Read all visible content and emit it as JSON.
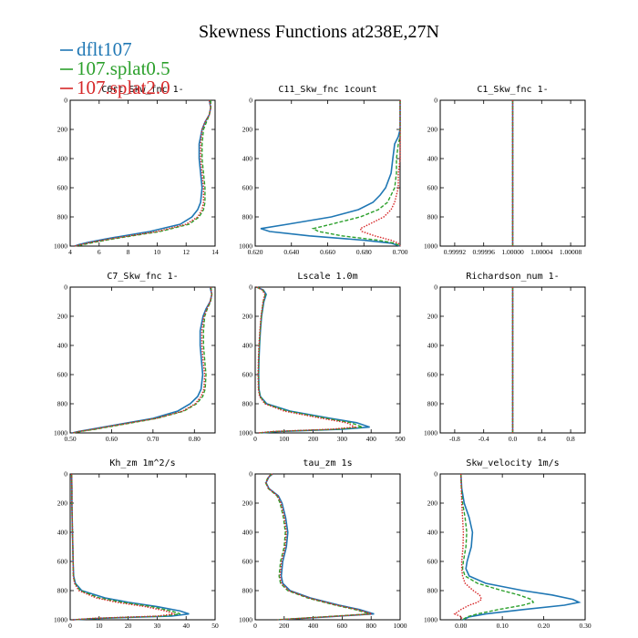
{
  "figure_title": "Skewness Functions at238E,27N",
  "colors": {
    "dflt107": "#1f77b4",
    "splat05": "#2ca02c",
    "splat20": "#d62728"
  },
  "legend": [
    {
      "label": "dflt107",
      "color": "#1f77b4"
    },
    {
      "label": "107.splat0.5",
      "color": "#2ca02c"
    },
    {
      "label": "107.splat2.0",
      "color": "#d62728"
    }
  ],
  "chart_data": [
    {
      "type": "line",
      "title": "C6rt_Skw_fnc   1-",
      "xlim": [
        4,
        14
      ],
      "ylim": [
        0,
        1000
      ],
      "y_inverted": true,
      "xticks": [
        4,
        6,
        8,
        10,
        12,
        14
      ],
      "xtick_labels": [
        "4",
        "6",
        "8",
        "10",
        "12",
        "14"
      ],
      "yticks": [
        0,
        200,
        400,
        600,
        800,
        1000
      ],
      "ytick_labels": [
        "0",
        "200",
        "400",
        "600",
        "800",
        "1000"
      ],
      "y": [
        0,
        50,
        100,
        150,
        200,
        300,
        400,
        500,
        600,
        700,
        750,
        800,
        850,
        900,
        950,
        975,
        990,
        1000
      ],
      "series": [
        {
          "name": "dflt107",
          "values": [
            13.6,
            13.7,
            13.6,
            13.3,
            13.1,
            12.9,
            12.9,
            13.0,
            13.1,
            13.0,
            12.8,
            12.4,
            11.6,
            9.5,
            6.5,
            5.2,
            4.6,
            4.3
          ]
        },
        {
          "name": "107.splat0.5",
          "values": [
            13.7,
            13.7,
            13.6,
            13.4,
            13.2,
            13.1,
            13.1,
            13.2,
            13.3,
            13.3,
            13.2,
            12.9,
            12.2,
            10.2,
            7.0,
            5.6,
            4.9,
            4.4
          ]
        },
        {
          "name": "107.splat2.0",
          "values": [
            13.6,
            13.7,
            13.6,
            13.3,
            13.1,
            13.0,
            13.0,
            13.1,
            13.2,
            13.2,
            13.1,
            12.8,
            12.0,
            10.0,
            6.8,
            5.4,
            4.7,
            4.3
          ]
        }
      ]
    },
    {
      "type": "line",
      "title": "C11_Skw_fnc   1count",
      "xlim": [
        0.62,
        0.7
      ],
      "ylim": [
        0,
        1000
      ],
      "y_inverted": true,
      "xticks": [
        0.62,
        0.64,
        0.66,
        0.68,
        0.7
      ],
      "xtick_labels": [
        "0.620",
        "0.640",
        "0.660",
        "0.680",
        "0.700"
      ],
      "yticks": [
        0,
        200,
        400,
        600,
        800,
        1000
      ],
      "ytick_labels": [
        "0",
        "200",
        "400",
        "600",
        "800",
        "1000"
      ],
      "y": [
        0,
        100,
        200,
        250,
        300,
        400,
        500,
        600,
        650,
        700,
        750,
        800,
        850,
        880,
        900,
        930,
        960,
        980,
        1000
      ],
      "series": [
        {
          "name": "dflt107",
          "values": [
            0.7,
            0.7,
            0.7,
            0.699,
            0.697,
            0.696,
            0.695,
            0.692,
            0.689,
            0.685,
            0.677,
            0.662,
            0.638,
            0.623,
            0.628,
            0.65,
            0.68,
            0.695,
            0.7
          ]
        },
        {
          "name": "107.splat0.5",
          "values": [
            0.7,
            0.7,
            0.7,
            0.7,
            0.699,
            0.698,
            0.698,
            0.697,
            0.695,
            0.693,
            0.688,
            0.678,
            0.662,
            0.652,
            0.655,
            0.668,
            0.688,
            0.697,
            0.7
          ]
        },
        {
          "name": "107.splat2.0",
          "values": [
            0.7,
            0.7,
            0.7,
            0.7,
            0.7,
            0.7,
            0.699,
            0.699,
            0.698,
            0.697,
            0.695,
            0.691,
            0.683,
            0.678,
            0.679,
            0.686,
            0.695,
            0.699,
            0.7
          ]
        }
      ]
    },
    {
      "type": "line",
      "title": "C1_Skw_fnc   1-",
      "xlim": [
        0.9999,
        1.0001
      ],
      "ylim": [
        0,
        1000
      ],
      "y_inverted": true,
      "xticks": [
        0.99992,
        0.99996,
        1.0,
        1.00004,
        1.00008
      ],
      "xtick_labels": [
        "0.99992",
        "0.99996",
        "1.00000",
        "1.00004",
        "1.00008"
      ],
      "yticks": [
        0,
        200,
        400,
        600,
        800,
        1000
      ],
      "ytick_labels": [
        "0",
        "200",
        "400",
        "600",
        "800",
        "1000"
      ],
      "y": [
        0,
        1000
      ],
      "series": [
        {
          "name": "dflt107",
          "values": [
            1.0,
            1.0
          ]
        },
        {
          "name": "107.splat0.5",
          "values": [
            1.0,
            1.0
          ]
        },
        {
          "name": "107.splat2.0",
          "values": [
            1.0,
            1.0
          ]
        }
      ]
    },
    {
      "type": "line",
      "title": "C7_Skw_fnc   1-",
      "xlim": [
        0.5,
        0.85
      ],
      "ylim": [
        0,
        1000
      ],
      "y_inverted": true,
      "xticks": [
        0.5,
        0.6,
        0.7,
        0.8
      ],
      "xtick_labels": [
        "0.50",
        "0.60",
        "0.70",
        "0.80"
      ],
      "yticks": [
        0,
        200,
        400,
        600,
        800,
        1000
      ],
      "ytick_labels": [
        "0",
        "200",
        "400",
        "600",
        "800",
        "1000"
      ],
      "y": [
        0,
        50,
        100,
        150,
        200,
        300,
        400,
        500,
        600,
        700,
        750,
        800,
        850,
        900,
        950,
        975,
        990,
        1000
      ],
      "series": [
        {
          "name": "dflt107",
          "values": [
            0.838,
            0.842,
            0.838,
            0.828,
            0.821,
            0.814,
            0.814,
            0.817,
            0.82,
            0.816,
            0.808,
            0.79,
            0.76,
            0.7,
            0.6,
            0.55,
            0.52,
            0.505
          ]
        },
        {
          "name": "107.splat0.5",
          "values": [
            0.84,
            0.842,
            0.839,
            0.831,
            0.825,
            0.822,
            0.822,
            0.825,
            0.828,
            0.826,
            0.82,
            0.805,
            0.775,
            0.71,
            0.61,
            0.56,
            0.525,
            0.507
          ]
        },
        {
          "name": "107.splat2.0",
          "values": [
            0.839,
            0.842,
            0.838,
            0.83,
            0.823,
            0.818,
            0.818,
            0.821,
            0.825,
            0.823,
            0.816,
            0.802,
            0.772,
            0.708,
            0.605,
            0.555,
            0.522,
            0.506
          ]
        }
      ]
    },
    {
      "type": "line",
      "title": "Lscale   1.0m",
      "xlim": [
        0,
        500
      ],
      "ylim": [
        0,
        1000
      ],
      "y_inverted": true,
      "xticks": [
        0,
        100,
        200,
        300,
        400,
        500
      ],
      "xtick_labels": [
        "0",
        "100",
        "200",
        "300",
        "400",
        "500"
      ],
      "yticks": [
        0,
        200,
        400,
        600,
        800,
        1000
      ],
      "ytick_labels": [
        "0",
        "200",
        "400",
        "600",
        "800",
        "1000"
      ],
      "y": [
        0,
        20,
        50,
        100,
        200,
        300,
        400,
        500,
        600,
        700,
        750,
        800,
        850,
        900,
        930,
        960,
        975,
        990,
        1000
      ],
      "series": [
        {
          "name": "dflt107",
          "values": [
            5,
            28,
            38,
            30,
            22,
            18,
            15,
            13,
            12,
            13,
            18,
            40,
            120,
            260,
            350,
            395,
            300,
            80,
            20
          ]
        },
        {
          "name": "107.splat0.5",
          "values": [
            5,
            26,
            35,
            28,
            21,
            17,
            14,
            12,
            11,
            12,
            17,
            36,
            110,
            245,
            330,
            370,
            280,
            70,
            15
          ]
        },
        {
          "name": "107.splat2.0",
          "values": [
            5,
            25,
            33,
            27,
            20,
            16,
            13,
            11,
            10,
            11,
            15,
            33,
            100,
            230,
            315,
            345,
            260,
            60,
            10
          ]
        }
      ]
    },
    {
      "type": "line",
      "title": "Richardson_num   1-",
      "xlim": [
        -1.0,
        1.0
      ],
      "ylim": [
        0,
        1000
      ],
      "y_inverted": true,
      "xticks": [
        -0.8,
        -0.4,
        0.0,
        0.4,
        0.8
      ],
      "xtick_labels": [
        "-0.8",
        "-0.4",
        "0.0",
        "0.4",
        "0.8"
      ],
      "yticks": [
        0,
        200,
        400,
        600,
        800,
        1000
      ],
      "ytick_labels": [
        "0",
        "200",
        "400",
        "600",
        "800",
        "1000"
      ],
      "y": [
        0,
        1000
      ],
      "series": [
        {
          "name": "dflt107",
          "values": [
            0.0,
            0.0
          ]
        },
        {
          "name": "107.splat0.5",
          "values": [
            0.0,
            0.0
          ]
        },
        {
          "name": "107.splat2.0",
          "values": [
            0.0,
            0.0
          ]
        }
      ]
    },
    {
      "type": "line",
      "title": "Kh_zm   1m^2/s",
      "xlim": [
        0,
        50
      ],
      "ylim": [
        0,
        1000
      ],
      "y_inverted": true,
      "xticks": [
        0,
        10,
        20,
        30,
        40,
        50
      ],
      "xtick_labels": [
        "0",
        "10",
        "20",
        "30",
        "40",
        "50"
      ],
      "yticks": [
        0,
        200,
        400,
        600,
        800,
        1000
      ],
      "ytick_labels": [
        "0",
        "200",
        "400",
        "600",
        "800",
        "1000"
      ],
      "y": [
        0,
        100,
        200,
        300,
        400,
        500,
        600,
        700,
        750,
        800,
        850,
        880,
        910,
        940,
        960,
        975,
        990,
        1000
      ],
      "series": [
        {
          "name": "dflt107",
          "values": [
            0.5,
            0.6,
            0.6,
            0.7,
            0.8,
            0.9,
            1.0,
            1.2,
            1.8,
            4,
            12,
            20,
            30,
            38,
            41,
            35,
            10,
            1
          ]
        },
        {
          "name": "107.splat0.5",
          "values": [
            0.5,
            0.6,
            0.6,
            0.7,
            0.8,
            0.9,
            1.0,
            1.1,
            1.6,
            3.5,
            10,
            18,
            28,
            35,
            38,
            32,
            9,
            1
          ]
        },
        {
          "name": "107.splat2.0",
          "values": [
            0.5,
            0.6,
            0.6,
            0.7,
            0.8,
            0.9,
            1.0,
            1.1,
            1.5,
            3,
            9,
            16,
            26,
            33,
            36,
            30,
            8,
            1
          ]
        }
      ]
    },
    {
      "type": "line",
      "title": "tau_zm   1s",
      "xlim": [
        0,
        1000
      ],
      "ylim": [
        0,
        1000
      ],
      "y_inverted": true,
      "xticks": [
        0,
        200,
        400,
        600,
        800,
        1000
      ],
      "xtick_labels": [
        "0",
        "200",
        "400",
        "600",
        "800",
        "1000"
      ],
      "yticks": [
        0,
        200,
        400,
        600,
        800,
        1000
      ],
      "ytick_labels": [
        "0",
        "200",
        "400",
        "600",
        "800",
        "1000"
      ],
      "y": [
        0,
        20,
        60,
        100,
        150,
        200,
        300,
        400,
        500,
        600,
        700,
        750,
        800,
        850,
        900,
        930,
        960,
        980,
        1000
      ],
      "series": [
        {
          "name": "dflt107",
          "values": [
            120,
            95,
            75,
            95,
            160,
            185,
            210,
            225,
            215,
            190,
            180,
            190,
            240,
            380,
            580,
            720,
            820,
            500,
            160
          ]
        },
        {
          "name": "107.splat0.5",
          "values": [
            115,
            90,
            72,
            90,
            150,
            172,
            195,
            208,
            200,
            175,
            165,
            175,
            225,
            360,
            555,
            690,
            790,
            470,
            150
          ]
        },
        {
          "name": "107.splat2.0",
          "values": [
            118,
            92,
            74,
            92,
            155,
            178,
            202,
            215,
            207,
            182,
            172,
            182,
            232,
            370,
            565,
            705,
            805,
            485,
            155
          ]
        }
      ]
    },
    {
      "type": "line",
      "title": "Skw_velocity   1m/s",
      "xlim": [
        -0.05,
        0.3
      ],
      "ylim": [
        0,
        1000
      ],
      "y_inverted": true,
      "xticks": [
        0.0,
        0.1,
        0.2,
        0.3
      ],
      "xtick_labels": [
        "0.00",
        "0.10",
        "0.20",
        "0.30"
      ],
      "yticks": [
        0,
        200,
        400,
        600,
        800,
        1000
      ],
      "ytick_labels": [
        "0",
        "200",
        "400",
        "600",
        "800",
        "1000"
      ],
      "y": [
        0,
        100,
        200,
        300,
        400,
        500,
        600,
        650,
        700,
        750,
        800,
        830,
        860,
        880,
        900,
        930,
        960,
        980,
        1000
      ],
      "series": [
        {
          "name": "dflt107",
          "values": [
            0.0,
            0.002,
            0.008,
            0.02,
            0.028,
            0.025,
            0.015,
            0.012,
            0.02,
            0.06,
            0.15,
            0.22,
            0.27,
            0.285,
            0.25,
            0.15,
            0.06,
            0.02,
            0.005
          ]
        },
        {
          "name": "107.splat0.5",
          "values": [
            0.0,
            0.001,
            0.004,
            0.01,
            0.014,
            0.012,
            0.006,
            0.004,
            0.01,
            0.04,
            0.1,
            0.14,
            0.17,
            0.175,
            0.15,
            0.09,
            0.04,
            0.015,
            0.004
          ]
        },
        {
          "name": "107.splat2.0",
          "values": [
            0.0,
            0.001,
            0.002,
            0.004,
            0.006,
            0.005,
            0.002,
            0.002,
            0.004,
            0.01,
            0.03,
            0.045,
            0.05,
            0.04,
            0.02,
            0.0,
            -0.015,
            0.002,
            0.001
          ]
        }
      ]
    }
  ]
}
